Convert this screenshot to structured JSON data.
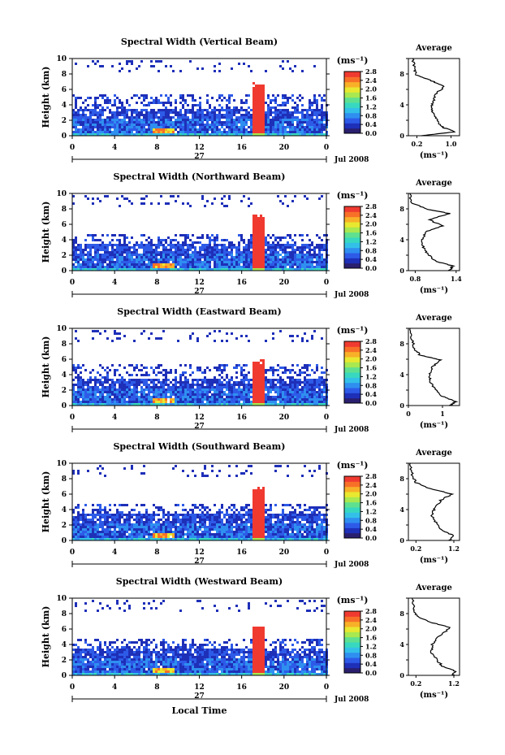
{
  "figure": {
    "footer_label": "Local Time",
    "date_label": "Jul 2008",
    "day_label": "27",
    "units_label": "(ms⁻¹)",
    "avg_title": "Average",
    "avg_xlabel": "(ms⁻¹)"
  },
  "colorbar": {
    "ticks": [
      "0.0",
      "0.4",
      "0.8",
      "1.2",
      "1.6",
      "2.0",
      "2.4",
      "2.8"
    ],
    "colors": [
      "#2a1f6e",
      "#1e2fb8",
      "#2d5be8",
      "#2f8ff0",
      "#33c0e8",
      "#38d8c0",
      "#5ee090",
      "#a8e850",
      "#e8e830",
      "#f8b028",
      "#f87028",
      "#f03a30"
    ]
  },
  "chart_data": [
    {
      "type": "heatmap",
      "title": "Spectral Width (Vertical Beam)",
      "ylabel": "Height (km)",
      "xlabel": "Local Time",
      "x_ticks": [
        "0",
        "4",
        "8",
        "12",
        "16",
        "20",
        "0"
      ],
      "y_ticks": [
        "0",
        "2",
        "4",
        "6",
        "8",
        "10"
      ],
      "xlim": [
        0,
        24
      ],
      "ylim": [
        0,
        10
      ],
      "color_range": [
        0.0,
        2.8
      ],
      "top_km": 5.5,
      "plume_top_km": 7.0,
      "average": {
        "x_ticks": [
          "0.2",
          "1.0"
        ],
        "xlim": [
          0.0,
          1.2
        ],
        "ylim": [
          0,
          10
        ],
        "profile": [
          [
            0.3,
            0
          ],
          [
            1.1,
            0.5
          ],
          [
            0.85,
            1.0
          ],
          [
            0.7,
            1.6
          ],
          [
            0.62,
            2.5
          ],
          [
            0.55,
            3.5
          ],
          [
            0.58,
            4.5
          ],
          [
            0.66,
            5.5
          ],
          [
            0.85,
            6.4
          ],
          [
            0.5,
            7.2
          ],
          [
            0.2,
            7.8
          ],
          [
            0.15,
            8.6
          ],
          [
            0.1,
            10
          ]
        ]
      }
    },
    {
      "type": "heatmap",
      "title": "Spectral Width (Northward Beam)",
      "ylabel": "Height (km)",
      "xlabel": "Local Time",
      "x_ticks": [
        "0",
        "4",
        "8",
        "12",
        "16",
        "20",
        "0"
      ],
      "y_ticks": [
        "0",
        "2",
        "4",
        "6",
        "8",
        "10"
      ],
      "xlim": [
        0,
        24
      ],
      "ylim": [
        0,
        10
      ],
      "color_range": [
        0.0,
        2.8
      ],
      "top_km": 5.0,
      "plume_top_km": 7.5,
      "average": {
        "x_ticks": [
          "0.8",
          "1.4"
        ],
        "xlim": [
          0.7,
          1.45
        ],
        "ylim": [
          0,
          10
        ],
        "profile": [
          [
            1.3,
            0
          ],
          [
            1.35,
            0.6
          ],
          [
            1.1,
            1.2
          ],
          [
            1.0,
            2.0
          ],
          [
            0.92,
            3.0
          ],
          [
            0.9,
            4.0
          ],
          [
            0.95,
            5.0
          ],
          [
            1.2,
            5.8
          ],
          [
            1.0,
            6.6
          ],
          [
            1.3,
            7.4
          ],
          [
            0.95,
            8.0
          ],
          [
            0.75,
            8.8
          ],
          [
            0.72,
            10
          ]
        ]
      }
    },
    {
      "type": "heatmap",
      "title": "Spectral Width (Eastward Beam)",
      "ylabel": "Height (km)",
      "xlabel": "Local Time",
      "x_ticks": [
        "0",
        "4",
        "8",
        "12",
        "16",
        "20",
        "0"
      ],
      "y_ticks": [
        "0",
        "2",
        "4",
        "6",
        "8",
        "10"
      ],
      "xlim": [
        0,
        24
      ],
      "ylim": [
        0,
        10
      ],
      "color_range": [
        0.0,
        2.8
      ],
      "top_km": 5.5,
      "plume_top_km": 6.2,
      "average": {
        "x_ticks": [
          "0",
          "1"
        ],
        "xlim": [
          0.0,
          1.5
        ],
        "ylim": [
          0,
          10
        ],
        "profile": [
          [
            1.2,
            0
          ],
          [
            1.4,
            0.5
          ],
          [
            1.0,
            1.2
          ],
          [
            0.8,
            2.0
          ],
          [
            0.65,
            3.0
          ],
          [
            0.6,
            4.0
          ],
          [
            0.7,
            5.0
          ],
          [
            0.95,
            5.9
          ],
          [
            0.35,
            6.5
          ],
          [
            0.2,
            7.2
          ],
          [
            0.1,
            8.5
          ],
          [
            0.05,
            10
          ]
        ]
      }
    },
    {
      "type": "heatmap",
      "title": "Spectral Width (Southward Beam)",
      "ylabel": "Height (km)",
      "xlabel": "Local Time",
      "x_ticks": [
        "0",
        "4",
        "8",
        "12",
        "16",
        "20",
        "0"
      ],
      "y_ticks": [
        "0",
        "2",
        "4",
        "6",
        "8",
        "10"
      ],
      "xlim": [
        0,
        24
      ],
      "ylim": [
        0,
        10
      ],
      "color_range": [
        0.0,
        2.8
      ],
      "top_km": 5.0,
      "plume_top_km": 7.2,
      "average": {
        "x_ticks": [
          "0.2",
          "1.2"
        ],
        "xlim": [
          0.0,
          1.35
        ],
        "ylim": [
          0,
          10
        ],
        "profile": [
          [
            1.1,
            0
          ],
          [
            1.2,
            0.6
          ],
          [
            0.9,
            1.3
          ],
          [
            0.75,
            2.2
          ],
          [
            0.6,
            3.2
          ],
          [
            0.7,
            4.2
          ],
          [
            0.85,
            5.2
          ],
          [
            1.15,
            6.0
          ],
          [
            0.5,
            6.8
          ],
          [
            0.2,
            7.5
          ],
          [
            0.1,
            8.5
          ],
          [
            0.05,
            10
          ]
        ]
      }
    },
    {
      "type": "heatmap",
      "title": "Spectral Width (Westward Beam)",
      "ylabel": "Height (km)",
      "xlabel": "Local Time",
      "x_ticks": [
        "0",
        "4",
        "8",
        "12",
        "16",
        "20",
        "0"
      ],
      "y_ticks": [
        "0",
        "2",
        "4",
        "6",
        "8",
        "10"
      ],
      "xlim": [
        0,
        24
      ],
      "ylim": [
        0,
        10
      ],
      "color_range": [
        0.0,
        2.8
      ],
      "top_km": 5.0,
      "plume_top_km": 6.8,
      "average": {
        "x_ticks": [
          "0.2",
          "1.2"
        ],
        "xlim": [
          0.0,
          1.35
        ],
        "ylim": [
          0,
          10
        ],
        "profile": [
          [
            1.15,
            0
          ],
          [
            1.25,
            0.5
          ],
          [
            0.9,
            1.2
          ],
          [
            0.75,
            2.0
          ],
          [
            0.6,
            3.0
          ],
          [
            0.62,
            4.0
          ],
          [
            0.8,
            5.0
          ],
          [
            1.1,
            6.2
          ],
          [
            0.5,
            7.0
          ],
          [
            0.2,
            7.8
          ],
          [
            0.15,
            8.6
          ],
          [
            0.1,
            10
          ]
        ]
      }
    }
  ]
}
